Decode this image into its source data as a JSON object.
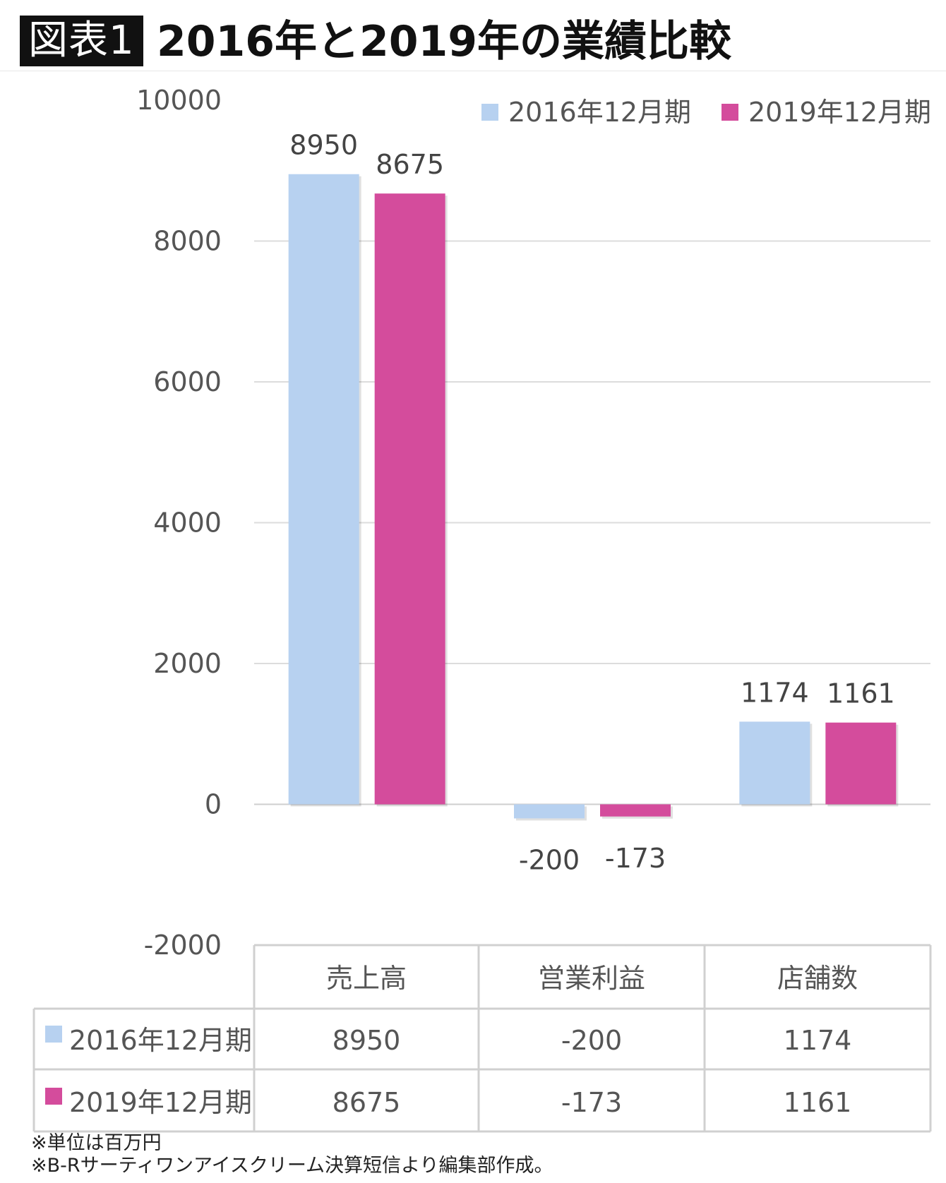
{
  "header": {
    "badge": "図表1",
    "title": "2016年と2019年の業績比較"
  },
  "chart_data": {
    "type": "bar",
    "categories": [
      "売上高",
      "営業利益",
      "店舗数"
    ],
    "series": [
      {
        "name": "2016年12月期",
        "values": [
          8950,
          -200,
          1174
        ],
        "color": "#b7d1f0"
      },
      {
        "name": "2019年12月期",
        "values": [
          8675,
          -173,
          1161
        ],
        "color": "#d44c9c"
      }
    ],
    "ylim": [
      -2000,
      10000
    ],
    "yticks": [
      10000,
      8000,
      6000,
      4000,
      2000,
      0,
      -2000
    ],
    "grid": true,
    "legend": "top-right",
    "data_table": true
  },
  "footnotes": [
    "※単位は百万円",
    "※B-Rサーティワンアイスクリーム決算短信より編集部作成。"
  ]
}
